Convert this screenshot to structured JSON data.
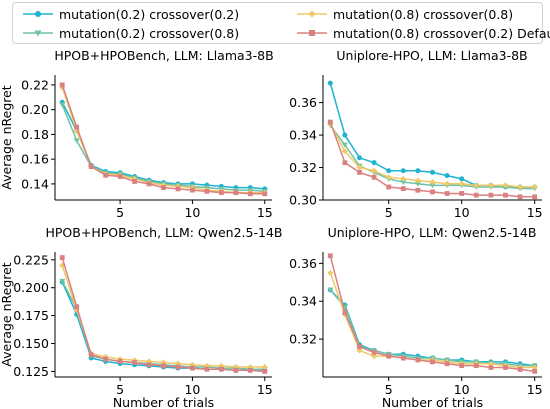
{
  "legend": {
    "entries": [
      {
        "label": "mutation(0.2) crossover(0.2)",
        "color": "#1fb3d2",
        "marker": "circle"
      },
      {
        "label": "mutation(0.2) crossover(0.8)",
        "color": "#6fc2a6",
        "marker": "triangle-down"
      },
      {
        "label": "mutation(0.8) crossover(0.8)",
        "color": "#f0c865",
        "marker": "diamond"
      },
      {
        "label": "mutation(0.8) crossover(0.2) Default",
        "color": "#d9817e",
        "marker": "square"
      }
    ]
  },
  "chart_data": [
    {
      "type": "line",
      "title": "HPOB+HPOBench, LLM: Llama3-8B",
      "xlabel": "",
      "ylabel": "Average nRegret",
      "x": [
        1,
        2,
        3,
        4,
        5,
        6,
        7,
        8,
        9,
        10,
        11,
        12,
        13,
        14,
        15
      ],
      "xlim": [
        0.5,
        15.5
      ],
      "ylim": [
        0.127,
        0.228
      ],
      "xticks": [
        5,
        10,
        15
      ],
      "yticks": [
        0.14,
        0.16,
        0.18,
        0.2,
        0.22
      ],
      "ytick_labels": [
        "0.14",
        "0.16",
        "0.18",
        "0.20",
        "0.22"
      ],
      "grid": false,
      "series": [
        {
          "name": "mutation(0.2) crossover(0.2)",
          "values": [
            0.206,
            0.183,
            0.155,
            0.15,
            0.149,
            0.146,
            0.143,
            0.141,
            0.14,
            0.14,
            0.139,
            0.138,
            0.137,
            0.137,
            0.136
          ]
        },
        {
          "name": "mutation(0.2) crossover(0.8)",
          "values": [
            0.204,
            0.175,
            0.154,
            0.149,
            0.148,
            0.145,
            0.142,
            0.14,
            0.139,
            0.138,
            0.137,
            0.136,
            0.135,
            0.135,
            0.134
          ]
        },
        {
          "name": "mutation(0.8) crossover(0.8)",
          "values": [
            0.218,
            0.183,
            0.154,
            0.148,
            0.147,
            0.144,
            0.141,
            0.139,
            0.138,
            0.137,
            0.135,
            0.134,
            0.133,
            0.133,
            0.133
          ]
        },
        {
          "name": "mutation(0.8) crossover(0.2) Default",
          "values": [
            0.22,
            0.186,
            0.154,
            0.147,
            0.146,
            0.142,
            0.14,
            0.137,
            0.136,
            0.135,
            0.134,
            0.133,
            0.133,
            0.132,
            0.132
          ]
        }
      ]
    },
    {
      "type": "line",
      "title": "Uniplore-HPO, LLM: Llama3-8B",
      "xlabel": "",
      "ylabel": "",
      "x": [
        1,
        2,
        3,
        4,
        5,
        6,
        7,
        8,
        9,
        10,
        11,
        12,
        13,
        14,
        15
      ],
      "xlim": [
        0.5,
        15.5
      ],
      "ylim": [
        0.3,
        0.377
      ],
      "xticks": [
        5,
        10,
        15
      ],
      "yticks": [
        0.3,
        0.32,
        0.34,
        0.36
      ],
      "ytick_labels": [
        "0.30",
        "0.32",
        "0.34",
        "0.36"
      ],
      "grid": false,
      "series": [
        {
          "name": "mutation(0.2) crossover(0.2)",
          "values": [
            0.372,
            0.34,
            0.326,
            0.323,
            0.318,
            0.318,
            0.318,
            0.317,
            0.315,
            0.313,
            0.309,
            0.309,
            0.308,
            0.308,
            0.308
          ]
        },
        {
          "name": "mutation(0.2) crossover(0.8)",
          "values": [
            0.346,
            0.334,
            0.321,
            0.317,
            0.313,
            0.311,
            0.31,
            0.309,
            0.309,
            0.309,
            0.308,
            0.308,
            0.308,
            0.307,
            0.307
          ]
        },
        {
          "name": "mutation(0.8) crossover(0.8)",
          "values": [
            0.347,
            0.33,
            0.32,
            0.318,
            0.314,
            0.313,
            0.312,
            0.311,
            0.31,
            0.31,
            0.309,
            0.309,
            0.309,
            0.308,
            0.308
          ]
        },
        {
          "name": "mutation(0.8) crossover(0.2) Default",
          "values": [
            0.348,
            0.323,
            0.317,
            0.314,
            0.308,
            0.307,
            0.306,
            0.305,
            0.304,
            0.304,
            0.303,
            0.303,
            0.303,
            0.302,
            0.302
          ]
        }
      ]
    },
    {
      "type": "line",
      "title": "HPOB+HPOBench, LLM: Qwen2.5-14B",
      "xlabel": "Number of trials",
      "ylabel": "Average nRegret",
      "x": [
        1,
        2,
        3,
        4,
        5,
        6,
        7,
        8,
        9,
        10,
        11,
        12,
        13,
        14,
        15
      ],
      "xlim": [
        0.5,
        15.5
      ],
      "ylim": [
        0.12,
        0.232
      ],
      "xticks": [
        5,
        10,
        15
      ],
      "yticks": [
        0.125,
        0.15,
        0.175,
        0.2,
        0.225
      ],
      "ytick_labels": [
        "0.125",
        "0.150",
        "0.175",
        "0.200",
        "0.225"
      ],
      "grid": false,
      "series": [
        {
          "name": "mutation(0.2) crossover(0.2)",
          "values": [
            0.205,
            0.176,
            0.137,
            0.134,
            0.132,
            0.131,
            0.13,
            0.129,
            0.128,
            0.128,
            0.127,
            0.127,
            0.126,
            0.126,
            0.126
          ]
        },
        {
          "name": "mutation(0.2) crossover(0.8)",
          "values": [
            0.206,
            0.181,
            0.139,
            0.136,
            0.134,
            0.133,
            0.132,
            0.131,
            0.13,
            0.129,
            0.129,
            0.128,
            0.128,
            0.127,
            0.127
          ]
        },
        {
          "name": "mutation(0.8) crossover(0.8)",
          "values": [
            0.22,
            0.18,
            0.141,
            0.138,
            0.136,
            0.135,
            0.134,
            0.133,
            0.132,
            0.131,
            0.13,
            0.13,
            0.129,
            0.129,
            0.129
          ]
        },
        {
          "name": "mutation(0.8) crossover(0.2) Default",
          "values": [
            0.227,
            0.183,
            0.14,
            0.136,
            0.134,
            0.133,
            0.131,
            0.13,
            0.129,
            0.128,
            0.127,
            0.127,
            0.126,
            0.126,
            0.125
          ]
        }
      ]
    },
    {
      "type": "line",
      "title": "Uniplore-HPO, LLM: Qwen2.5-14B",
      "xlabel": "Number of trials",
      "ylabel": "",
      "x": [
        1,
        2,
        3,
        4,
        5,
        6,
        7,
        8,
        9,
        10,
        11,
        12,
        13,
        14,
        15
      ],
      "xlim": [
        0.5,
        15.5
      ],
      "ylim": [
        0.3,
        0.366
      ],
      "xticks": [
        5,
        10,
        15
      ],
      "yticks": [
        0.32,
        0.34,
        0.36
      ],
      "ytick_labels": [
        "0.32",
        "0.34",
        "0.36"
      ],
      "grid": false,
      "series": [
        {
          "name": "mutation(0.2) crossover(0.2)",
          "values": [
            0.346,
            0.338,
            0.317,
            0.314,
            0.312,
            0.312,
            0.311,
            0.31,
            0.309,
            0.309,
            0.308,
            0.308,
            0.308,
            0.307,
            0.306
          ]
        },
        {
          "name": "mutation(0.2) crossover(0.8)",
          "values": [
            0.346,
            0.337,
            0.316,
            0.314,
            0.312,
            0.311,
            0.31,
            0.31,
            0.309,
            0.308,
            0.308,
            0.307,
            0.307,
            0.306,
            0.306
          ]
        },
        {
          "name": "mutation(0.8) crossover(0.8)",
          "values": [
            0.355,
            0.333,
            0.314,
            0.311,
            0.311,
            0.31,
            0.309,
            0.309,
            0.308,
            0.307,
            0.307,
            0.307,
            0.306,
            0.305,
            0.305
          ]
        },
        {
          "name": "mutation(0.8) crossover(0.2) Default",
          "values": [
            0.364,
            0.334,
            0.316,
            0.313,
            0.311,
            0.31,
            0.309,
            0.308,
            0.307,
            0.306,
            0.306,
            0.305,
            0.305,
            0.304,
            0.303
          ]
        }
      ]
    }
  ]
}
